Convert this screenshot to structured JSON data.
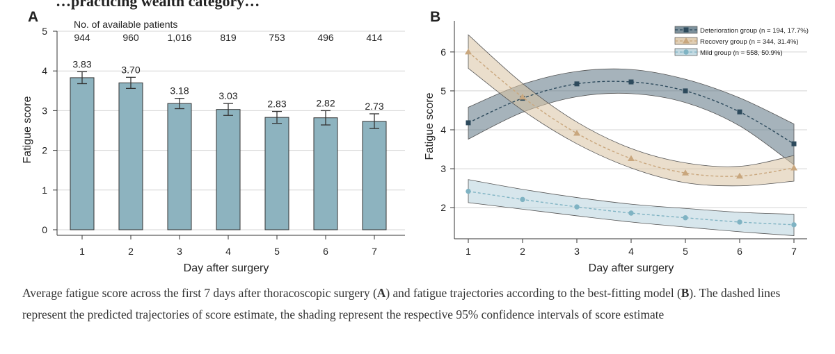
{
  "top_clip_text": "…practicing wealth category…",
  "panel_a": {
    "label": "A",
    "counts_header": "No. of available patients",
    "chart_data": {
      "type": "bar",
      "categories": [
        "1",
        "2",
        "3",
        "4",
        "5",
        "6",
        "7"
      ],
      "values": [
        3.83,
        3.7,
        3.18,
        3.03,
        2.83,
        2.82,
        2.73
      ],
      "value_labels": [
        "3.83",
        "3.70",
        "3.18",
        "3.03",
        "2.83",
        "2.82",
        "2.73"
      ],
      "error_low": [
        3.68,
        3.56,
        3.05,
        2.88,
        2.68,
        2.64,
        2.55
      ],
      "error_high": [
        3.98,
        3.84,
        3.31,
        3.18,
        2.98,
        3.0,
        2.92
      ],
      "patient_counts": [
        "944",
        "960",
        "1,016",
        "819",
        "753",
        "496",
        "414"
      ],
      "xlabel": "Day after surgery",
      "ylabel": "Fatigue score",
      "ylim": [
        0,
        5
      ],
      "yticks": [
        "0",
        "1",
        "2",
        "3",
        "4",
        "5"
      ],
      "grid": true,
      "bar_color": "#8db3bf"
    }
  },
  "panel_b": {
    "label": "B",
    "chart_data": {
      "type": "line",
      "x": [
        1,
        2,
        3,
        4,
        5,
        6,
        7
      ],
      "xticks": [
        "1",
        "2",
        "3",
        "4",
        "5",
        "6",
        "7"
      ],
      "xlabel": "Day after surgery",
      "ylabel": "Fatigue score",
      "ylim": [
        1.2,
        6.8
      ],
      "yticks": [
        "2",
        "3",
        "4",
        "5",
        "6"
      ],
      "grid": true,
      "legend_position": "top-right",
      "series": [
        {
          "name": "Deterioration group (n = 194, 17.7%)",
          "marker": "square",
          "values": [
            4.18,
            4.81,
            5.18,
            5.23,
            5.0,
            4.46,
            3.64
          ],
          "ci_low": [
            3.76,
            4.45,
            4.85,
            4.93,
            4.7,
            4.1,
            3.1
          ],
          "ci_high": [
            4.58,
            5.17,
            5.5,
            5.55,
            5.3,
            4.82,
            4.15
          ],
          "line_color": "#2d4a5c",
          "fill_color": "#5d7583"
        },
        {
          "name": "Recovery group (n = 344, 31.4%)",
          "marker": "triangle",
          "values": [
            6.0,
            4.84,
            3.91,
            3.26,
            2.89,
            2.81,
            3.02
          ],
          "ci_low": [
            5.58,
            4.5,
            3.64,
            3.02,
            2.64,
            2.56,
            2.68
          ],
          "ci_high": [
            6.44,
            5.19,
            4.2,
            3.52,
            3.15,
            3.06,
            3.34
          ],
          "line_color": "#c9a77e",
          "fill_color": "#d9c3a3"
        },
        {
          "name": "Mild group (n = 558, 50.9%)",
          "marker": "circle",
          "values": [
            2.42,
            2.21,
            2.02,
            1.86,
            1.74,
            1.63,
            1.56
          ],
          "ci_low": [
            2.13,
            1.96,
            1.79,
            1.63,
            1.5,
            1.38,
            1.28
          ],
          "ci_high": [
            2.72,
            2.47,
            2.26,
            2.09,
            1.98,
            1.88,
            1.83
          ],
          "line_color": "#7fb3c3",
          "fill_color": "#b7d2dc"
        }
      ]
    }
  },
  "caption": {
    "p1": "Average fatigue score across the first 7 days after thoracoscopic surgery (",
    "a": "A",
    "p2": ") and fatigue trajectories according to the best-fitting model (",
    "b": "B",
    "p3": "). The dashed lines represent the predicted trajectories of score estimate, the shading represent the respective 95% confidence intervals of score estimate"
  }
}
